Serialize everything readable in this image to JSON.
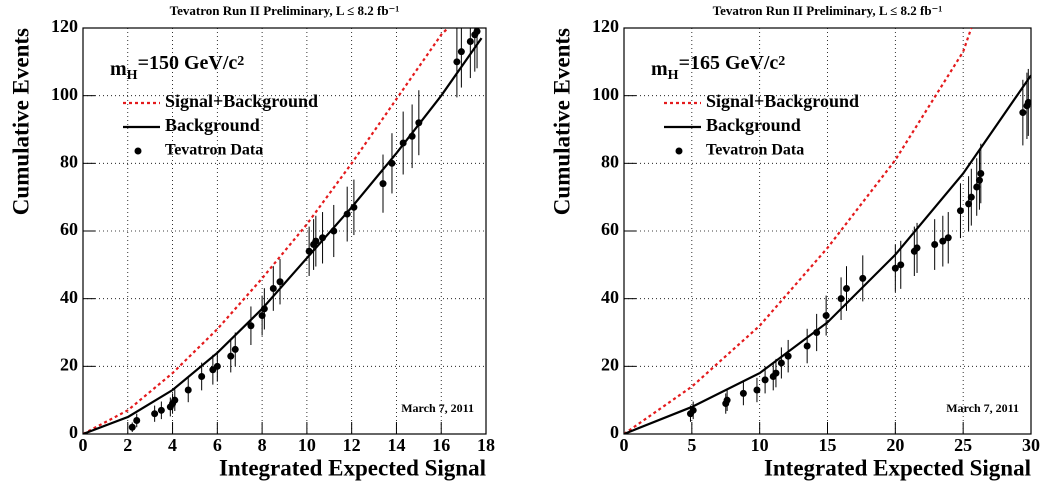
{
  "chart_data": [
    {
      "type": "line",
      "title": "Tevatron Run II Preliminary, L ≤ 8.2 fb⁻¹",
      "xlabel": "Integrated Expected Signal",
      "ylabel": "Cumulative Events",
      "annotation": [
        "m",
        "H",
        "=150 GeV/c",
        "2"
      ],
      "date": "March 7, 2011",
      "xlim": [
        0,
        18
      ],
      "xticks": [
        0,
        2,
        4,
        6,
        8,
        10,
        12,
        14,
        16,
        18
      ],
      "ylim": [
        0,
        120
      ],
      "yticks": [
        0,
        20,
        40,
        60,
        80,
        100,
        120
      ],
      "grid": true,
      "series": [
        {
          "name": "Signal+Background",
          "color": "#e41a1c",
          "style": "dotted",
          "x": [
            0,
            2,
            4,
            6,
            8,
            10,
            12,
            14,
            16,
            16.3
          ],
          "values": [
            0,
            7,
            18,
            31,
            46,
            62,
            80,
            99,
            118,
            120
          ]
        },
        {
          "name": "Background",
          "color": "#000000",
          "style": "solid",
          "x": [
            0,
            2,
            4,
            6,
            8,
            10,
            12,
            14,
            16,
            17.8
          ],
          "values": [
            0,
            5,
            13,
            24,
            37,
            52,
            67,
            83,
            100,
            117
          ]
        },
        {
          "name": "Tevatron Data",
          "color": "#000000",
          "style": "points",
          "x": [
            2.2,
            2.4,
            3.2,
            3.5,
            3.9,
            4.0,
            4.1,
            4.7,
            5.3,
            5.8,
            6.0,
            6.6,
            6.8,
            7.5,
            8.0,
            8.1,
            8.5,
            8.8,
            10.1,
            10.3,
            10.4,
            10.7,
            11.2,
            11.8,
            12.1,
            13.4,
            13.8,
            14.3,
            14.7,
            15.0,
            16.7,
            16.9,
            17.3,
            17.5,
            17.6
          ],
          "values": [
            2,
            4,
            6,
            7,
            8,
            9,
            10,
            13,
            17,
            19,
            20,
            23,
            25,
            32,
            35,
            37,
            43,
            45,
            54,
            56,
            57,
            58,
            60,
            65,
            67,
            74,
            80,
            86,
            88,
            92,
            110,
            113,
            116,
            118,
            119
          ],
          "errors": [
            1.4,
            2,
            2.4,
            2.6,
            2.8,
            3,
            3.2,
            3.6,
            4.1,
            4.4,
            4.5,
            4.8,
            5,
            5.7,
            5.9,
            6.1,
            6.6,
            6.7,
            7.3,
            7.5,
            7.5,
            7.6,
            7.7,
            8.1,
            8.2,
            8.6,
            8.9,
            9.3,
            9.4,
            9.6,
            10.5,
            10.6,
            10.8,
            10.9,
            10.9
          ]
        }
      ]
    },
    {
      "type": "line",
      "title": "Tevatron Run II Preliminary, L ≤ 8.2 fb⁻¹",
      "xlabel": "Integrated Expected Signal",
      "ylabel": "Cumulative Events",
      "annotation": [
        "m",
        "H",
        "=165 GeV/c",
        "2"
      ],
      "date": "March 7, 2011",
      "xlim": [
        0,
        30
      ],
      "xticks": [
        0,
        5,
        10,
        15,
        20,
        25,
        30
      ],
      "ylim": [
        0,
        120
      ],
      "yticks": [
        0,
        20,
        40,
        60,
        80,
        100,
        120
      ],
      "grid": true,
      "series": [
        {
          "name": "Signal+Background",
          "color": "#e41a1c",
          "style": "dotted",
          "x": [
            0,
            5,
            10,
            15,
            20,
            25,
            25.6
          ],
          "values": [
            0,
            14,
            32,
            55,
            81,
            113,
            120
          ]
        },
        {
          "name": "Background",
          "color": "#000000",
          "style": "solid",
          "x": [
            0,
            5,
            10,
            15,
            20,
            25,
            30
          ],
          "values": [
            0,
            8,
            18,
            33,
            53,
            77,
            106
          ]
        },
        {
          "name": "Tevatron Data",
          "color": "#000000",
          "style": "points",
          "x": [
            4.9,
            5.1,
            7.5,
            7.6,
            8.8,
            9.8,
            10.4,
            11.0,
            11.2,
            11.6,
            12.1,
            13.5,
            14.2,
            14.9,
            16.0,
            16.4,
            17.6,
            20.0,
            20.4,
            21.4,
            21.6,
            22.9,
            23.5,
            23.9,
            24.8,
            25.4,
            25.6,
            26.0,
            26.2,
            26.3,
            29.4,
            29.7,
            29.8
          ],
          "values": [
            6,
            7,
            9,
            10,
            12,
            13,
            16,
            17,
            18,
            21,
            23,
            26,
            30,
            35,
            40,
            43,
            46,
            49,
            50,
            54,
            55,
            56,
            57,
            58,
            66,
            68,
            70,
            73,
            75,
            77,
            95,
            97,
            98
          ],
          "errors": [
            2.4,
            2.6,
            3,
            3.2,
            3.5,
            3.6,
            4,
            4.1,
            4.2,
            4.6,
            4.8,
            5.1,
            5.5,
            5.9,
            6.3,
            6.6,
            6.8,
            7,
            7.1,
            7.3,
            7.4,
            7.5,
            7.5,
            7.6,
            8.1,
            8.2,
            8.4,
            8.5,
            8.7,
            8.8,
            9.7,
            9.8,
            9.9
          ]
        }
      ]
    }
  ]
}
